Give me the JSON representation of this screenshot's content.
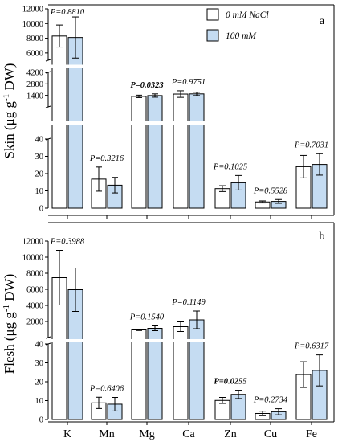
{
  "chart_data": [
    {
      "type": "bar",
      "panel_label": "a",
      "ylabel_prefix": "Skin (",
      "ylabel_unit_mu": "μ",
      "ylabel_unit_g": "g g",
      "ylabel_exp": "-1",
      "ylabel_suffix": " DW)",
      "categories": [
        "K",
        "Mn",
        "Mg",
        "Ca",
        "Zn",
        "Cu",
        "Fe"
      ],
      "series": [
        {
          "name": "0 mM NaCl",
          "color": "#ffffff",
          "values": [
            8300,
            16.8,
            1280,
            1560,
            11.3,
            3.6,
            24
          ],
          "errors": [
            1500,
            7,
            150,
            400,
            1.7,
            0.6,
            6.5
          ]
        },
        {
          "name": "100 mM",
          "color": "#c5dcf2",
          "values": [
            8100,
            13.3,
            1380,
            1580,
            14.7,
            3.9,
            25.3
          ],
          "errors": [
            2800,
            4.5,
            200,
            200,
            4.2,
            1.1,
            6.2
          ]
        }
      ],
      "p_values": [
        "P=0.8810",
        "P=0.3216",
        "P=0.0323",
        "P=0.9751",
        "P=0.1025",
        "P=0.5528",
        "P=0.7031"
      ],
      "p_bold": [
        false,
        false,
        true,
        false,
        false,
        false,
        false
      ],
      "y_segments": [
        {
          "range": [
            0,
            40
          ],
          "ticks": [
            0,
            10,
            20,
            30,
            40
          ]
        },
        {
          "range": [
            0,
            4200
          ],
          "ticks": [
            1400,
            2800,
            4200
          ]
        },
        {
          "range": [
            5000,
            12000
          ],
          "ticks": [
            6000,
            8000,
            10000,
            12000
          ]
        }
      ]
    },
    {
      "type": "bar",
      "panel_label": "b",
      "ylabel_prefix": "Flesh (",
      "ylabel_unit_mu": "μ",
      "ylabel_unit_g": "g g",
      "ylabel_exp": "-1",
      "ylabel_suffix": " DW)",
      "categories": [
        "K",
        "Mn",
        "Mg",
        "Ca",
        "Zn",
        "Cu",
        "Fe"
      ],
      "series": [
        {
          "name": "0 mM NaCl",
          "color": "#ffffff",
          "values": [
            7450,
            8.8,
            950,
            1350,
            10.1,
            3.2,
            23.8
          ],
          "errors": [
            3400,
            3,
            80,
            600,
            1.6,
            1.2,
            6.8
          ]
        },
        {
          "name": "100 mM",
          "color": "#c5dcf2",
          "values": [
            5950,
            8.1,
            1150,
            2200,
            13.3,
            4.1,
            26
          ],
          "errors": [
            2700,
            3.6,
            300,
            1100,
            2.2,
            1.6,
            8.2
          ]
        }
      ],
      "p_values": [
        "P=0.3988",
        "P=0.6406",
        "P=0.1540",
        "P=0.1149",
        "P=0.0255",
        "P=0.2734",
        "P=0.6317"
      ],
      "p_bold": [
        false,
        false,
        false,
        false,
        true,
        false,
        false
      ],
      "y_segments": [
        {
          "range": [
            0,
            40
          ],
          "ticks": [
            0,
            10,
            20,
            30,
            40
          ]
        },
        {
          "range": [
            0,
            12000
          ],
          "ticks": [
            2000,
            4000,
            6000,
            8000,
            10000,
            12000
          ]
        }
      ]
    }
  ]
}
